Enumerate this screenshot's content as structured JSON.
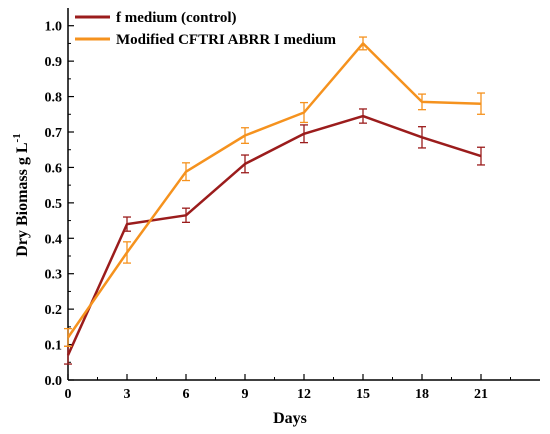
{
  "chart_data": {
    "type": "line",
    "xlabel": "Days",
    "ylabel": "Dry Biomass g L",
    "ylabel_superscript": "-1",
    "xlim": [
      0,
      24
    ],
    "ylim": [
      0,
      1.05
    ],
    "xticks": [
      0,
      3,
      6,
      9,
      12,
      15,
      18,
      21
    ],
    "yticks": [
      0.0,
      0.1,
      0.2,
      0.3,
      0.4,
      0.5,
      0.6,
      0.7,
      0.8,
      0.9,
      1.0
    ],
    "ytick_labels": [
      "0.0",
      "0.1",
      "0.2",
      "0.3",
      "0.4",
      "0.5",
      "0.6",
      "0.7",
      "0.8",
      "0.9",
      "1.0"
    ],
    "grid": false,
    "legend_position": "top-left",
    "series": [
      {
        "name": "f medium (control)",
        "color": "#9b1c1c",
        "x": [
          0,
          3,
          6,
          9,
          12,
          15,
          18,
          21
        ],
        "y": [
          0.07,
          0.44,
          0.465,
          0.61,
          0.695,
          0.745,
          0.685,
          0.632
        ],
        "error": [
          0.025,
          0.02,
          0.02,
          0.025,
          0.025,
          0.02,
          0.03,
          0.025
        ]
      },
      {
        "name": "Modified CFTRI ABRR I medium",
        "color": "#f5921e",
        "x": [
          0,
          3,
          6,
          9,
          12,
          15,
          18,
          21
        ],
        "y": [
          0.12,
          0.36,
          0.588,
          0.69,
          0.755,
          0.95,
          0.785,
          0.78
        ],
        "error": [
          0.025,
          0.03,
          0.025,
          0.022,
          0.028,
          0.018,
          0.022,
          0.03
        ]
      }
    ]
  }
}
